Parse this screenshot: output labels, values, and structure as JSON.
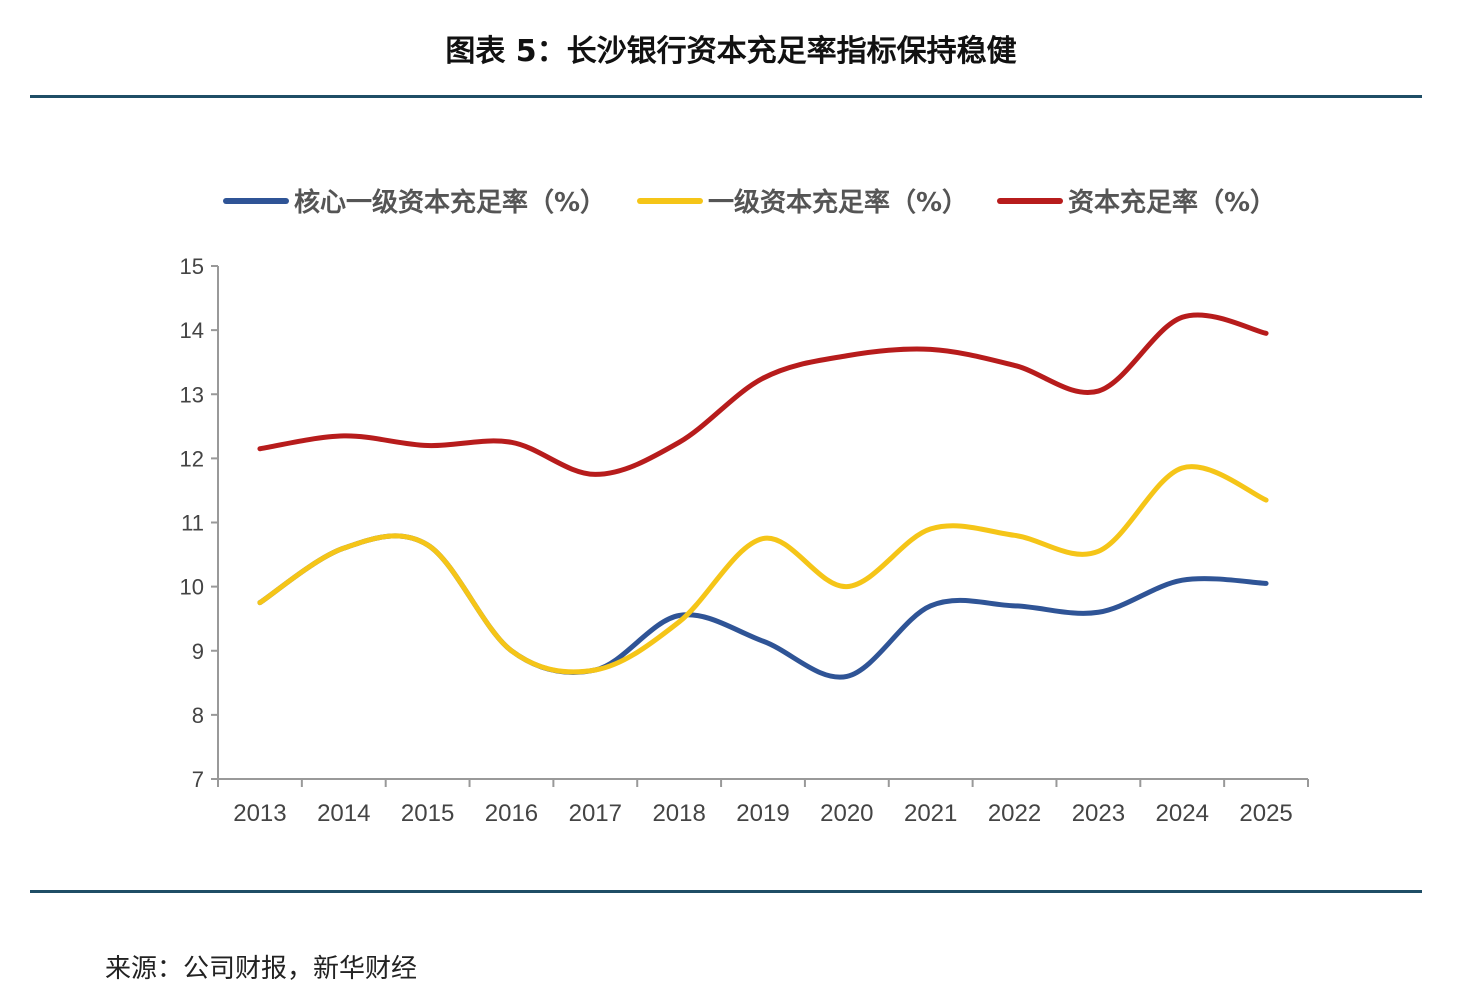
{
  "figure": {
    "title": "图表 5：长沙银行资本充足率指标保持稳健",
    "source": "来源：公司财报，新华财经"
  },
  "chart_data": {
    "type": "line",
    "title": "",
    "xlabel": "",
    "ylabel": "",
    "categories": [
      "2013",
      "2014",
      "2015",
      "2016",
      "2017",
      "2018",
      "2019",
      "2020",
      "2021",
      "2022",
      "2023",
      "2024",
      "2025"
    ],
    "ylim": [
      7,
      15
    ],
    "yticks": [
      7,
      8,
      9,
      10,
      11,
      12,
      13,
      14,
      15
    ],
    "grid": false,
    "legend_position": "top",
    "series": [
      {
        "name": "核心一级资本充足率（%）",
        "color": "#2f5496",
        "values": [
          9.75,
          10.6,
          10.65,
          9.0,
          8.7,
          9.55,
          9.15,
          8.6,
          9.7,
          9.7,
          9.6,
          10.1,
          10.05
        ]
      },
      {
        "name": "一级资本充足率（%）",
        "color": "#f5c518",
        "values": [
          9.75,
          10.6,
          10.65,
          9.0,
          8.7,
          9.45,
          10.75,
          10.0,
          10.9,
          10.8,
          10.55,
          11.85,
          11.35
        ]
      },
      {
        "name": "资本充足率（%）",
        "color": "#b71c1c",
        "values": [
          12.15,
          12.35,
          12.2,
          12.25,
          11.75,
          12.25,
          13.25,
          13.6,
          13.7,
          13.45,
          13.05,
          14.2,
          13.95
        ]
      }
    ]
  }
}
